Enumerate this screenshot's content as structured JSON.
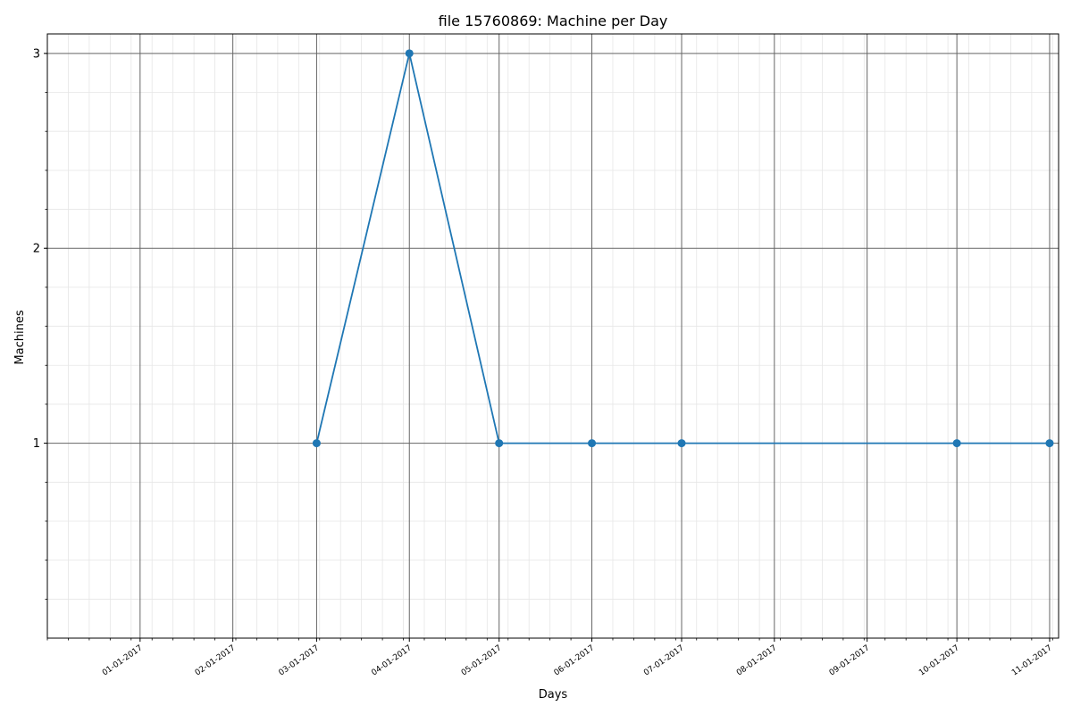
{
  "chart_data": {
    "type": "line",
    "title": "file 15760869: Machine per Day",
    "xlabel": "Days",
    "ylabel": "Machines",
    "x_tick_labels": [
      "01-01-2017",
      "02-01-2017",
      "03-01-2017",
      "04-01-2017",
      "05-01-2017",
      "06-01-2017",
      "07-01-2017",
      "08-01-2017",
      "09-01-2017",
      "10-01-2017",
      "11-01-2017"
    ],
    "y_ticks": [
      1,
      2,
      3
    ],
    "ylim": [
      0,
      3.1
    ],
    "xlim": [
      "2016-12-01",
      "2017-11-04"
    ],
    "grid": true,
    "minor_grid": true,
    "series": [
      {
        "color": "#1f77b4",
        "marker": "circle",
        "points": [
          {
            "x": "2017-03-01",
            "y": 1
          },
          {
            "x": "2017-04-01",
            "y": 3
          },
          {
            "x": "2017-05-01",
            "y": 1
          },
          {
            "x": "2017-06-01",
            "y": 1
          },
          {
            "x": "2017-07-01",
            "y": 1
          },
          {
            "x": "2017-10-01",
            "y": 1
          },
          {
            "x": "2017-11-01",
            "y": 1
          }
        ]
      }
    ]
  }
}
